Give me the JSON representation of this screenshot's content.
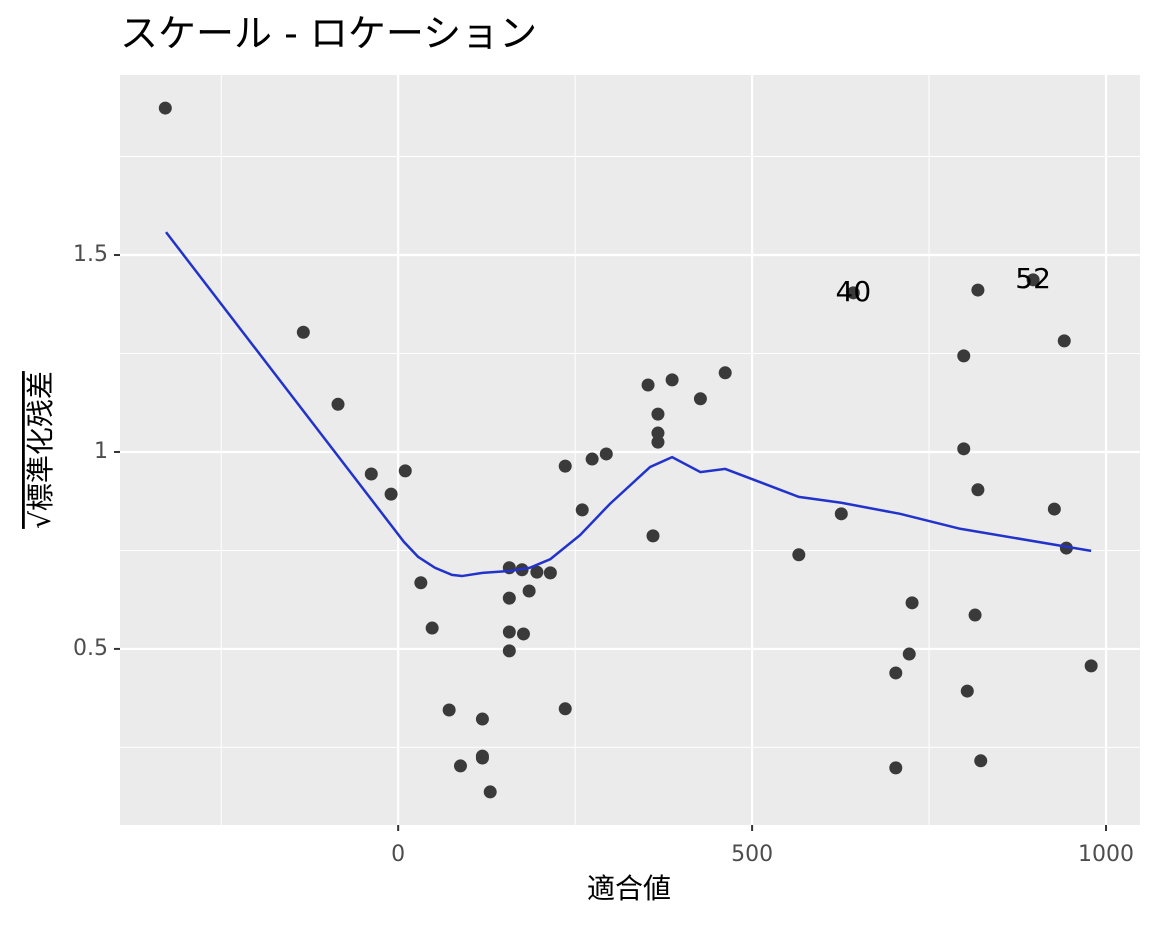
{
  "chart_data": {
    "type": "scatter",
    "title": "スケール - ロケーション",
    "x_label": "適合値",
    "y_label": "√標準化残差",
    "xlim": [
      -393,
      1048
    ],
    "ylim": [
      0.053,
      1.957
    ],
    "xticks": [
      0,
      500,
      1000
    ],
    "yticks": [
      0.5,
      1.0,
      1.5
    ],
    "x_minor_ticks": [
      -250,
      250,
      750
    ],
    "y_minor_ticks": [
      0.25,
      0.75,
      1.25,
      1.75
    ],
    "grid": true,
    "series": [
      {
        "kind": "points",
        "color": "#3a3a3a",
        "x": [
          -329,
          -134,
          -85,
          -38,
          -10,
          10,
          32,
          48,
          72,
          88,
          119,
          119,
          119,
          130,
          157,
          157,
          157,
          157,
          175,
          177,
          185,
          196,
          215,
          236,
          236,
          260,
          274,
          294,
          353,
          360,
          367,
          367,
          367,
          387,
          427,
          462,
          566,
          626,
          643,
          703,
          703,
          722,
          726,
          799,
          799,
          804,
          815,
          819,
          819,
          823,
          897,
          927,
          941,
          944,
          979
        ],
        "values": [
          1.873,
          1.304,
          1.121,
          0.944,
          0.893,
          0.952,
          0.668,
          0.553,
          0.345,
          0.203,
          0.322,
          0.228,
          0.223,
          0.137,
          0.706,
          0.629,
          0.543,
          0.495,
          0.701,
          0.538,
          0.647,
          0.695,
          0.693,
          0.348,
          0.964,
          0.853,
          0.982,
          0.995,
          1.17,
          0.787,
          1.096,
          1.048,
          1.025,
          1.183,
          1.135,
          1.201,
          0.739,
          0.843,
          1.404,
          0.439,
          0.198,
          0.487,
          0.617,
          1.244,
          1.008,
          0.393,
          0.586,
          1.411,
          0.904,
          0.216,
          1.437,
          0.855,
          1.282,
          0.756,
          0.457
        ],
        "point_labels": [
          null,
          null,
          null,
          null,
          null,
          null,
          null,
          null,
          null,
          null,
          null,
          null,
          null,
          null,
          null,
          null,
          null,
          null,
          null,
          null,
          null,
          null,
          null,
          null,
          null,
          null,
          null,
          null,
          null,
          null,
          null,
          null,
          null,
          null,
          null,
          null,
          null,
          null,
          "40",
          null,
          null,
          null,
          null,
          null,
          null,
          null,
          null,
          null,
          null,
          null,
          "52",
          null,
          null,
          null,
          null
        ]
      },
      {
        "kind": "line",
        "color": "#2233cc",
        "x": [
          -328,
          8,
          28,
          52,
          76,
          90,
          119,
          158,
          186,
          215,
          257,
          299,
          356,
          387,
          427,
          462,
          566,
          626,
          709,
          794,
          979
        ],
        "values": [
          1.558,
          0.772,
          0.734,
          0.706,
          0.688,
          0.685,
          0.693,
          0.698,
          0.706,
          0.728,
          0.789,
          0.868,
          0.962,
          0.987,
          0.949,
          0.957,
          0.886,
          0.871,
          0.843,
          0.805,
          0.749
        ]
      }
    ]
  }
}
